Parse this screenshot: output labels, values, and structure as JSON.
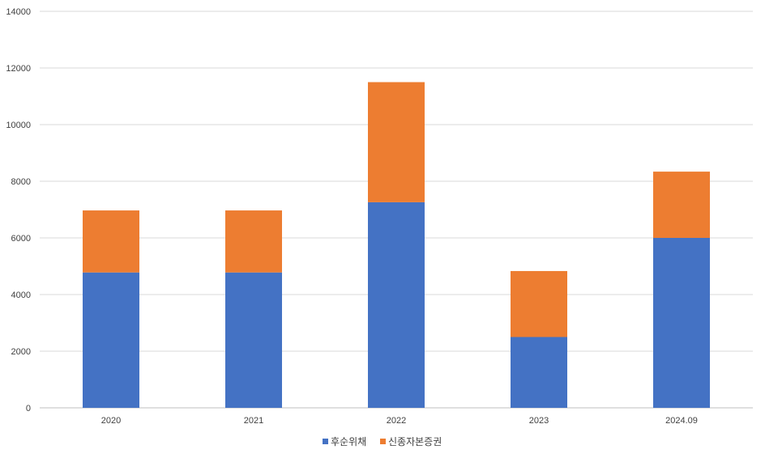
{
  "chart_data": {
    "type": "bar",
    "stacked": true,
    "categories": [
      "2020",
      "2021",
      "2022",
      "2023",
      "2024.09"
    ],
    "series": [
      {
        "name": "후순위채",
        "color": "#4472C4",
        "values": [
          4780,
          4780,
          7260,
          2500,
          6000
        ]
      },
      {
        "name": "신종자본증권",
        "color": "#ED7D31",
        "values": [
          2190,
          2190,
          4240,
          2330,
          2340
        ]
      }
    ],
    "title": "",
    "xlabel": "",
    "ylabel": "",
    "ylim": [
      0,
      14000
    ],
    "yticks": [
      "0",
      "2000",
      "4000",
      "6000",
      "8000",
      "10000",
      "12000",
      "14000"
    ],
    "grid": true,
    "legend_position": "bottom"
  }
}
